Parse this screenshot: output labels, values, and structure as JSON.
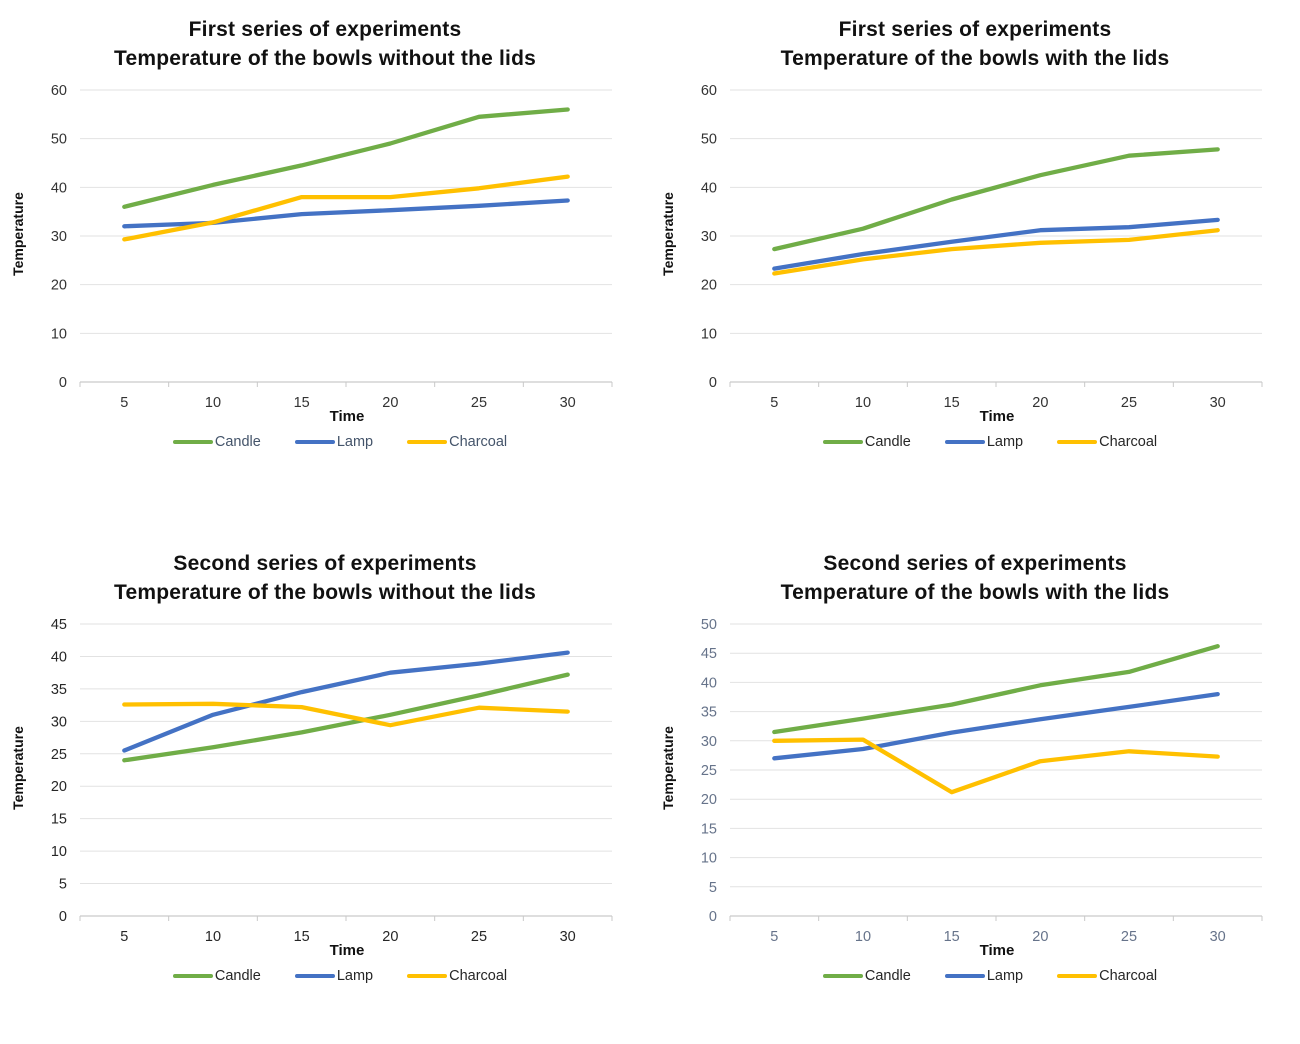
{
  "page": {
    "background": "#ffffff"
  },
  "chart_data": [
    {
      "type": "line",
      "title_line1": "First series of experiments",
      "title_line2": "Temperature of the bowls without the lids",
      "xlabel": "Time",
      "ylabel": "Temperature",
      "x": [
        5,
        10,
        15,
        20,
        25,
        30
      ],
      "ylim": [
        0,
        60
      ],
      "ytick_step": 10,
      "grid": "horizontal",
      "legend_position": "bottom",
      "tick_color": "#333333",
      "legend_text_color": "#44546A",
      "series": [
        {
          "name": "Candle",
          "color": "#70AD47",
          "values": [
            36.0,
            40.5,
            44.5,
            49.0,
            54.5,
            56.0
          ]
        },
        {
          "name": "Lamp",
          "color": "#4472C4",
          "values": [
            32.0,
            32.7,
            34.5,
            35.3,
            36.2,
            37.3
          ]
        },
        {
          "name": "Charcoal",
          "color": "#FFC000",
          "values": [
            29.3,
            32.8,
            38.0,
            38.0,
            39.8,
            42.2
          ]
        }
      ]
    },
    {
      "type": "line",
      "title_line1": "First series of experiments",
      "title_line2": "Temperature of the bowls with the lids",
      "xlabel": "Time",
      "ylabel": "Temperature",
      "x": [
        5,
        10,
        15,
        20,
        25,
        30
      ],
      "ylim": [
        0,
        60
      ],
      "ytick_step": 10,
      "grid": "horizontal",
      "legend_position": "bottom",
      "tick_color": "#333333",
      "legend_text_color": "#262626",
      "series": [
        {
          "name": "Candle",
          "color": "#70AD47",
          "values": [
            27.3,
            31.5,
            37.5,
            42.5,
            46.5,
            47.8
          ]
        },
        {
          "name": "Lamp",
          "color": "#4472C4",
          "values": [
            23.3,
            26.3,
            28.8,
            31.2,
            31.8,
            33.3
          ]
        },
        {
          "name": "Charcoal",
          "color": "#FFC000",
          "values": [
            22.3,
            25.2,
            27.3,
            28.6,
            29.2,
            31.2
          ]
        }
      ]
    },
    {
      "type": "line",
      "title_line1": "Second series of experiments",
      "title_line2": "Temperature of the bowls without the lids",
      "xlabel": "Time",
      "ylabel": "Temperature",
      "x": [
        5,
        10,
        15,
        20,
        25,
        30
      ],
      "ylim": [
        0,
        45
      ],
      "ytick_step": 5,
      "grid": "horizontal",
      "legend_position": "bottom",
      "tick_color": "#262626",
      "legend_text_color": "#262626",
      "series": [
        {
          "name": "Candle",
          "color": "#70AD47",
          "values": [
            24.0,
            26.0,
            28.3,
            31.0,
            34.0,
            37.2
          ]
        },
        {
          "name": "Lamp",
          "color": "#4472C4",
          "values": [
            25.5,
            31.0,
            34.5,
            37.5,
            38.9,
            40.6
          ]
        },
        {
          "name": "Charcoal",
          "color": "#FFC000",
          "values": [
            32.6,
            32.7,
            32.2,
            29.4,
            32.1,
            31.5
          ]
        }
      ]
    },
    {
      "type": "line",
      "title_line1": "Second series of experiments",
      "title_line2": "Temperature of the bowls with the lids",
      "xlabel": "Time",
      "ylabel": "Temperature",
      "x": [
        5,
        10,
        15,
        20,
        25,
        30
      ],
      "ylim": [
        0,
        50
      ],
      "ytick_step": 5,
      "grid": "horizontal",
      "legend_position": "bottom",
      "tick_color": "#66738a",
      "legend_text_color": "#262626",
      "series": [
        {
          "name": "Candle",
          "color": "#70AD47",
          "values": [
            31.5,
            33.8,
            36.2,
            39.5,
            41.8,
            46.2
          ]
        },
        {
          "name": "Lamp",
          "color": "#4472C4",
          "values": [
            27.0,
            28.6,
            31.4,
            33.7,
            35.8,
            38.0
          ]
        },
        {
          "name": "Charcoal",
          "color": "#FFC000",
          "values": [
            30.0,
            30.2,
            21.2,
            26.5,
            28.2,
            27.3
          ]
        }
      ]
    }
  ],
  "style": {
    "gridline_color": "#e2e2e2",
    "axis_line_color": "#c9c9c9"
  }
}
